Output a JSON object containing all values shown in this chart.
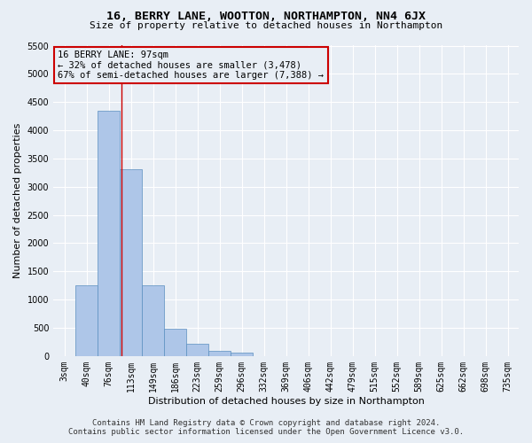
{
  "title": "16, BERRY LANE, WOOTTON, NORTHAMPTON, NN4 6JX",
  "subtitle": "Size of property relative to detached houses in Northampton",
  "xlabel": "Distribution of detached houses by size in Northampton",
  "ylabel": "Number of detached properties",
  "footer_line1": "Contains HM Land Registry data © Crown copyright and database right 2024.",
  "footer_line2": "Contains public sector information licensed under the Open Government Licence v3.0.",
  "bar_labels": [
    "3sqm",
    "40sqm",
    "76sqm",
    "113sqm",
    "149sqm",
    "186sqm",
    "223sqm",
    "259sqm",
    "296sqm",
    "332sqm",
    "369sqm",
    "406sqm",
    "442sqm",
    "479sqm",
    "515sqm",
    "552sqm",
    "589sqm",
    "625sqm",
    "662sqm",
    "698sqm",
    "735sqm"
  ],
  "bar_values": [
    0,
    1260,
    4350,
    3310,
    1260,
    480,
    215,
    90,
    60,
    0,
    0,
    0,
    0,
    0,
    0,
    0,
    0,
    0,
    0,
    0,
    0
  ],
  "bar_color": "#aec6e8",
  "bar_edge_color": "#5a8fc0",
  "annotation_line1": "16 BERRY LANE: 97sqm",
  "annotation_line2": "← 32% of detached houses are smaller (3,478)",
  "annotation_line3": "67% of semi-detached houses are larger (7,388) →",
  "ylim": [
    0,
    5500
  ],
  "yticks": [
    0,
    500,
    1000,
    1500,
    2000,
    2500,
    3000,
    3500,
    4000,
    4500,
    5000,
    5500
  ],
  "bg_color": "#e8eef5",
  "grid_color": "#ffffff",
  "annotation_box_color": "#cc0000",
  "title_fontsize": 9.5,
  "subtitle_fontsize": 8,
  "axis_label_fontsize": 8,
  "tick_fontsize": 7,
  "annotation_fontsize": 7.5,
  "footer_fontsize": 6.5
}
